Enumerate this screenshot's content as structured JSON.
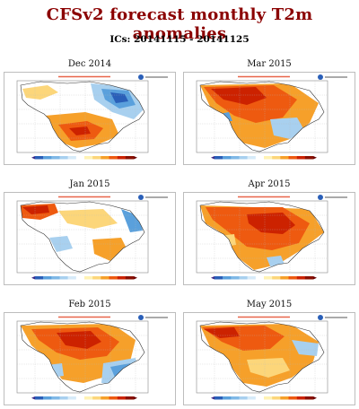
{
  "title": "CFSv2 forecast monthly T2m anomalies",
  "subtitle": "ICs: 20141115 - 20141125",
  "colors": {
    "title": "#8b0000",
    "strong_warm": "#cc2200",
    "warm": "#ee5a10",
    "mild_warm": "#f6a02a",
    "weak_warm": "#fcd67a",
    "weak_cold": "#a8d0ef",
    "cold": "#5aa0dc",
    "strong_cold": "#2a5fb8"
  },
  "panels": [
    {
      "label": "Dec 2014",
      "pattern": "dec"
    },
    {
      "label": "Mar 2015",
      "pattern": "mar"
    },
    {
      "label": "Jan 2015",
      "pattern": "jan"
    },
    {
      "label": "Apr 2015",
      "pattern": "apr"
    },
    {
      "label": "Feb 2015",
      "pattern": "feb"
    },
    {
      "label": "May 2015",
      "pattern": "may"
    }
  ]
}
